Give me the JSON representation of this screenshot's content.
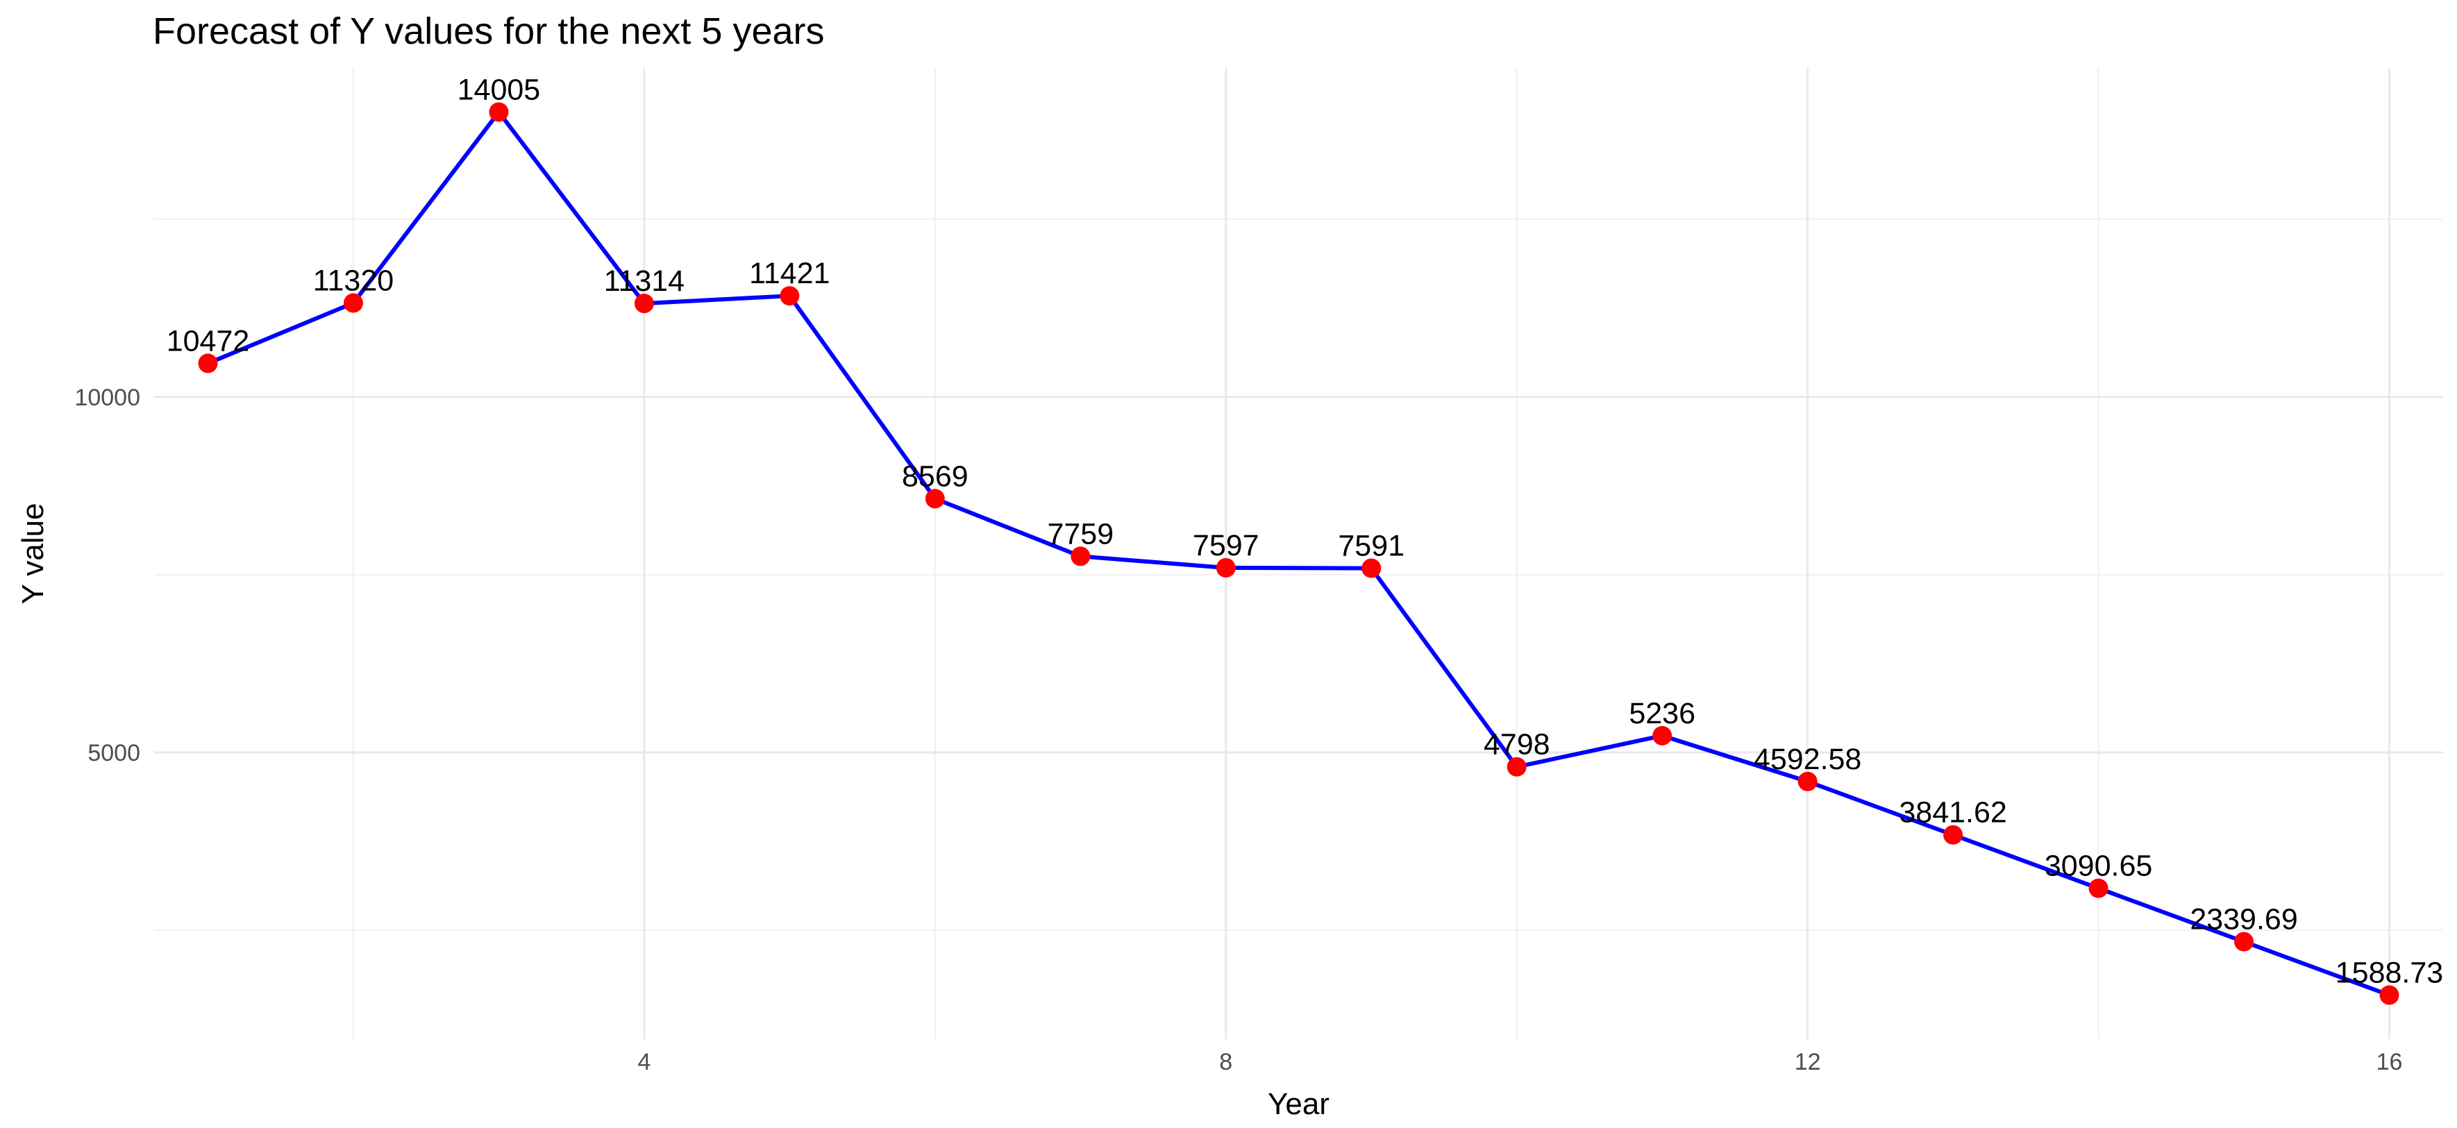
{
  "chart_data": {
    "type": "line",
    "title": "Forecast of Y values for the next 5 years",
    "xlabel": "Year",
    "ylabel": "Y value",
    "x": [
      1,
      2,
      3,
      4,
      5,
      6,
      7,
      8,
      9,
      10,
      11,
      12,
      13,
      14,
      15,
      16
    ],
    "series": [
      {
        "values": [
          10472,
          11320,
          14005,
          11314,
          11421,
          8569,
          7759,
          7597,
          7591,
          4798,
          5236,
          4592.58,
          3841.62,
          3090.65,
          2339.69,
          1588.73
        ],
        "line_color": "#0000ff",
        "point_color": "#ff0000"
      }
    ],
    "data_labels": [
      "10472",
      "11320",
      "14005",
      "11314",
      "11421",
      "8569",
      "7759",
      "7597",
      "7591",
      "4798",
      "5236",
      "4592.58",
      "3841.62",
      "3090.65",
      "2339.69",
      "1588.73"
    ],
    "xlim": [
      0.63,
      16.37
    ],
    "ylim": [
      969.47,
      14624.26
    ],
    "x_ticks": [
      4,
      8,
      12,
      16
    ],
    "x_tick_labels": [
      "4",
      "8",
      "12",
      "16"
    ],
    "y_ticks": [
      5000,
      10000
    ],
    "y_tick_labels": [
      "5000",
      "10000"
    ],
    "grid": true,
    "legend": "none"
  }
}
